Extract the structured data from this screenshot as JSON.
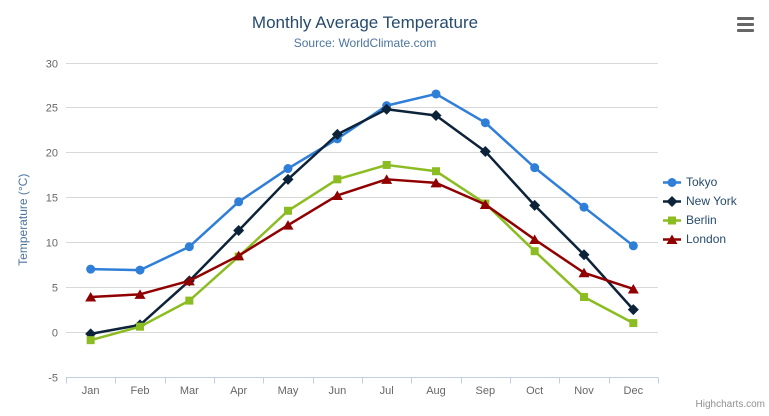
{
  "credits": "Highcharts.com",
  "export_menu_label": "chart context menu",
  "colors": {
    "background": "#ffffff",
    "title": "#274b6d",
    "subtitle": "#4d759e",
    "axis_label": "#666666",
    "axis_title": "#4d759e",
    "grid": "#d8d8d8",
    "axis_line": "#c0d0e0",
    "legend_text": "#274b6d",
    "credits": "#909090",
    "menu_icon": "#666666"
  },
  "chart_data": {
    "type": "line",
    "title": "Monthly Average Temperature",
    "subtitle": "Source: WorldClimate.com",
    "categories": [
      "Jan",
      "Feb",
      "Mar",
      "Apr",
      "May",
      "Jun",
      "Jul",
      "Aug",
      "Sep",
      "Oct",
      "Nov",
      "Dec"
    ],
    "xlabel": "",
    "ylabel": "Temperature (°C)",
    "ylim": [
      -5,
      30
    ],
    "ytick_interval": 5,
    "grid": true,
    "legend_position": "right",
    "series": [
      {
        "name": "Tokyo",
        "color": "#2f7ed8",
        "marker": "circle",
        "values": [
          7.0,
          6.9,
          9.5,
          14.5,
          18.2,
          21.5,
          25.2,
          26.5,
          23.3,
          18.3,
          13.9,
          9.6
        ]
      },
      {
        "name": "New York",
        "color": "#0d233a",
        "marker": "diamond",
        "values": [
          -0.2,
          0.8,
          5.7,
          11.3,
          17.0,
          22.0,
          24.8,
          24.1,
          20.1,
          14.1,
          8.6,
          2.5
        ]
      },
      {
        "name": "Berlin",
        "color": "#8bbc21",
        "marker": "square",
        "values": [
          -0.9,
          0.6,
          3.5,
          8.4,
          13.5,
          17.0,
          18.6,
          17.9,
          14.3,
          9.0,
          3.9,
          1.0
        ]
      },
      {
        "name": "London",
        "color": "#910000",
        "marker": "triangle",
        "values": [
          3.9,
          4.2,
          5.7,
          8.5,
          11.9,
          15.2,
          17.0,
          16.6,
          14.2,
          10.3,
          6.6,
          4.8
        ]
      }
    ]
  }
}
